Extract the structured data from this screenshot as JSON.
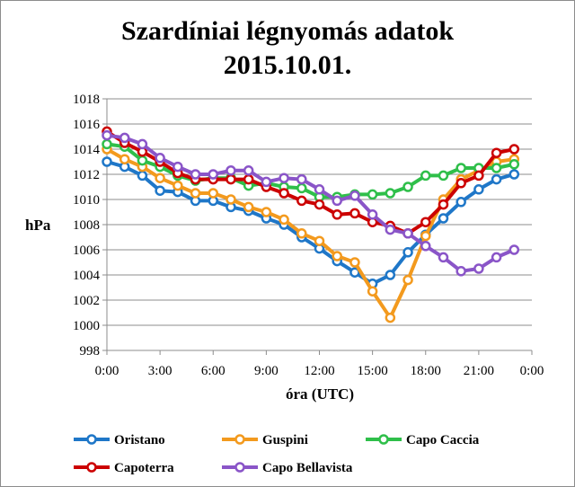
{
  "chart_data": {
    "type": "line",
    "title": [
      "Szardíniai légnyomás adatok",
      "2015.10.01."
    ],
    "xlabel": "óra (UTC)",
    "ylabel": "hPa",
    "ylim": [
      998,
      1018
    ],
    "y_ticks": [
      998,
      1000,
      1002,
      1004,
      1006,
      1008,
      1010,
      1012,
      1014,
      1016,
      1018
    ],
    "xlim": [
      0,
      24
    ],
    "x_ticks": [
      0,
      3,
      6,
      9,
      12,
      15,
      18,
      21,
      24
    ],
    "x_tick_labels": [
      "0:00",
      "3:00",
      "6:00",
      "9:00",
      "12:00",
      "15:00",
      "18:00",
      "21:00",
      "0:00"
    ],
    "grid": "horizontal",
    "legend": "bottom",
    "x": [
      0,
      1,
      2,
      3,
      4,
      5,
      6,
      7,
      8,
      9,
      10,
      11,
      12,
      13,
      14,
      15,
      16,
      17,
      18,
      19,
      20,
      21,
      22,
      23
    ],
    "series": [
      {
        "name": "Oristano",
        "color": "#1f77c8",
        "values": [
          1013.0,
          1012.6,
          1011.9,
          1010.7,
          1010.6,
          1009.9,
          1009.9,
          1009.4,
          1009.1,
          1008.5,
          1008.0,
          1007.0,
          1006.1,
          1005.1,
          1004.2,
          1003.3,
          1004.0,
          1005.8,
          1007.2,
          1008.5,
          1009.8,
          1010.8,
          1011.6,
          1012.0
        ]
      },
      {
        "name": "Guspini",
        "color": "#f39a1e",
        "values": [
          1014.0,
          1013.2,
          1012.6,
          1011.7,
          1011.1,
          1010.5,
          1010.5,
          1010.0,
          1009.4,
          1009.0,
          1008.4,
          1007.3,
          1006.7,
          1005.5,
          1005.0,
          1002.7,
          1000.6,
          1003.6,
          1007.1,
          1010.0,
          1011.6,
          1012.3,
          1013.0,
          1013.2
        ]
      },
      {
        "name": "Capo Caccia",
        "color": "#2fbf4a",
        "values": [
          1014.4,
          1014.2,
          1013.1,
          1012.6,
          1011.9,
          1011.5,
          1011.7,
          1011.7,
          1011.1,
          1011.3,
          1011.0,
          1010.9,
          1010.2,
          1010.2,
          1010.4,
          1010.4,
          1010.5,
          1011.0,
          1011.9,
          1011.9,
          1012.5,
          1012.5,
          1012.5,
          1012.8
        ]
      },
      {
        "name": "Capoterra",
        "color": "#cc0000",
        "values": [
          1015.4,
          1014.5,
          1013.8,
          1013.0,
          1012.1,
          1011.6,
          1011.6,
          1011.6,
          1011.6,
          1011.0,
          1010.5,
          1009.9,
          1009.6,
          1008.8,
          1008.9,
          1008.2,
          1007.9,
          1007.3,
          1008.2,
          1009.6,
          1011.3,
          1011.9,
          1013.7,
          1014.0
        ]
      },
      {
        "name": "Capo Bellavista",
        "color": "#8a55c8",
        "values": [
          1015.1,
          1014.9,
          1014.4,
          1013.3,
          1012.6,
          1012.0,
          1012.0,
          1012.3,
          1012.3,
          1011.4,
          1011.7,
          1011.6,
          1010.8,
          1009.9,
          1010.3,
          1008.8,
          1007.6,
          1007.3,
          1006.3,
          1005.4,
          1004.3,
          1004.5,
          1005.4,
          1006.0
        ]
      }
    ]
  }
}
